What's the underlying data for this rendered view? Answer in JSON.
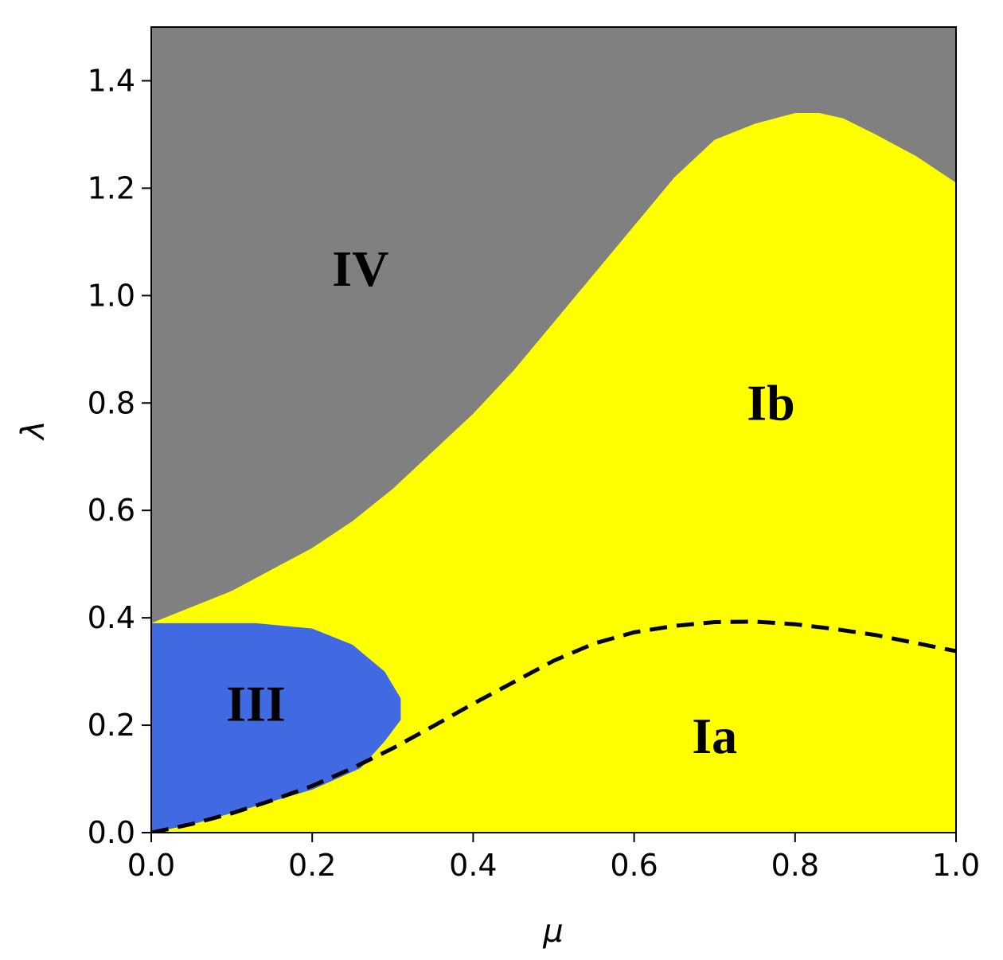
{
  "chart_data": {
    "type": "area",
    "title": "",
    "xlabel": "μ",
    "ylabel": "λ",
    "xlim": [
      0.0,
      1.0
    ],
    "ylim": [
      0.0,
      1.5
    ],
    "xticks": [
      "0.0",
      "0.2",
      "0.4",
      "0.6",
      "0.8",
      "1.0"
    ],
    "yticks": [
      "0.0",
      "0.2",
      "0.4",
      "0.6",
      "0.8",
      "1.0",
      "1.2",
      "1.4"
    ],
    "grid": false,
    "colors": {
      "IV": "#808080",
      "Ib": "#ffff00",
      "III": "#4169e1",
      "dashed": "#000000"
    },
    "regions": [
      {
        "label": "IV",
        "label_at": [
          0.26,
          1.04
        ]
      },
      {
        "label": "Ib",
        "label_at": [
          0.77,
          0.79
        ]
      },
      {
        "label": "III",
        "label_at": [
          0.13,
          0.23
        ],
        "boundary": [
          [
            0.0,
            0.0
          ],
          [
            0.0,
            0.39
          ],
          [
            0.13,
            0.39
          ],
          [
            0.2,
            0.38
          ],
          [
            0.25,
            0.35
          ],
          [
            0.29,
            0.3
          ],
          [
            0.31,
            0.25
          ],
          [
            0.31,
            0.21
          ],
          [
            0.29,
            0.17
          ],
          [
            0.26,
            0.12
          ],
          [
            0.2,
            0.08
          ],
          [
            0.12,
            0.045
          ],
          [
            0.05,
            0.015
          ],
          [
            0.0,
            0.0
          ]
        ]
      },
      {
        "label": "Ia",
        "label_at": [
          0.7,
          0.17
        ]
      }
    ],
    "upper_boundary": {
      "x": [
        0.0,
        0.05,
        0.1,
        0.15,
        0.2,
        0.25,
        0.3,
        0.35,
        0.4,
        0.45,
        0.5,
        0.55,
        0.6,
        0.65,
        0.7,
        0.75,
        0.8,
        0.83,
        0.86,
        0.9,
        0.95,
        1.0
      ],
      "y": [
        0.39,
        0.42,
        0.45,
        0.49,
        0.53,
        0.58,
        0.64,
        0.71,
        0.78,
        0.86,
        0.95,
        1.04,
        1.13,
        1.22,
        1.29,
        1.32,
        1.34,
        1.34,
        1.33,
        1.3,
        1.26,
        1.21
      ]
    },
    "dashed_curve": {
      "x": [
        0.0,
        0.05,
        0.1,
        0.15,
        0.2,
        0.25,
        0.3,
        0.35,
        0.4,
        0.45,
        0.5,
        0.55,
        0.6,
        0.65,
        0.7,
        0.75,
        0.8,
        0.85,
        0.9,
        0.95,
        1.0
      ],
      "y": [
        0.0,
        0.016,
        0.036,
        0.06,
        0.087,
        0.12,
        0.157,
        0.198,
        0.24,
        0.28,
        0.32,
        0.352,
        0.373,
        0.385,
        0.392,
        0.393,
        0.388,
        0.379,
        0.368,
        0.353,
        0.338
      ]
    }
  }
}
